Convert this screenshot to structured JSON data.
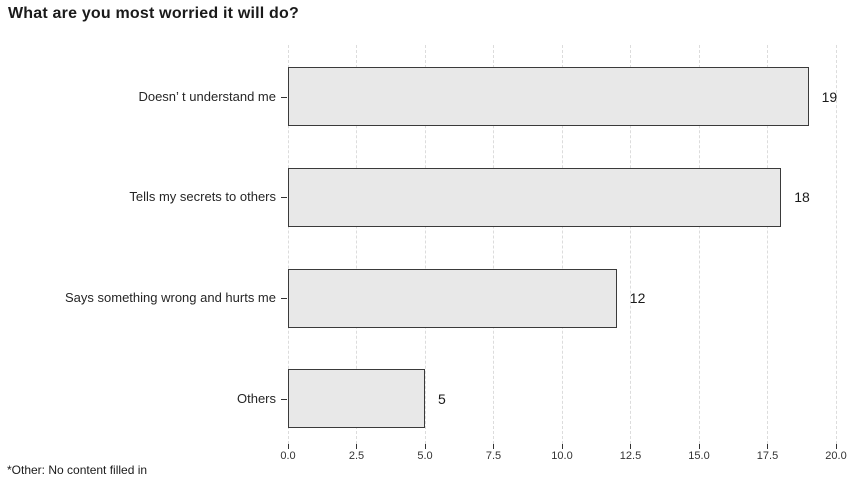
{
  "title": "What are you most worried it will do?",
  "footnote": "*Other: No content filled in",
  "chart_data": {
    "type": "bar",
    "orientation": "horizontal",
    "title": "What are you most worried it will do?",
    "categories": [
      "Doesn’ t understand me",
      "Tells my secrets to others",
      "Says something wrong and hurts me",
      "Others"
    ],
    "values": [
      19,
      18,
      12,
      5
    ],
    "value_labels": [
      "19",
      "18",
      "12",
      "5"
    ],
    "xlabel": "",
    "ylabel": "",
    "xlim": [
      0,
      20
    ],
    "xticks": [
      0,
      2.5,
      5,
      7.5,
      10,
      12.5,
      15,
      17.5,
      20
    ],
    "xtick_labels": [
      "0.0",
      "2.5",
      "5.0",
      "7.5",
      "10.0",
      "12.5",
      "15.0",
      "17.5",
      "20.0"
    ],
    "grid": "vertical dashed",
    "legend": "none",
    "annotation": "*Other: No content filled in",
    "colors": {
      "background": "#ffffff",
      "bar_fill": "#e8e8e8",
      "bar_border": "#3a3a3a",
      "gridline": "#dcdcdc",
      "tick": "#333333",
      "text": "#1a1a1a"
    }
  }
}
